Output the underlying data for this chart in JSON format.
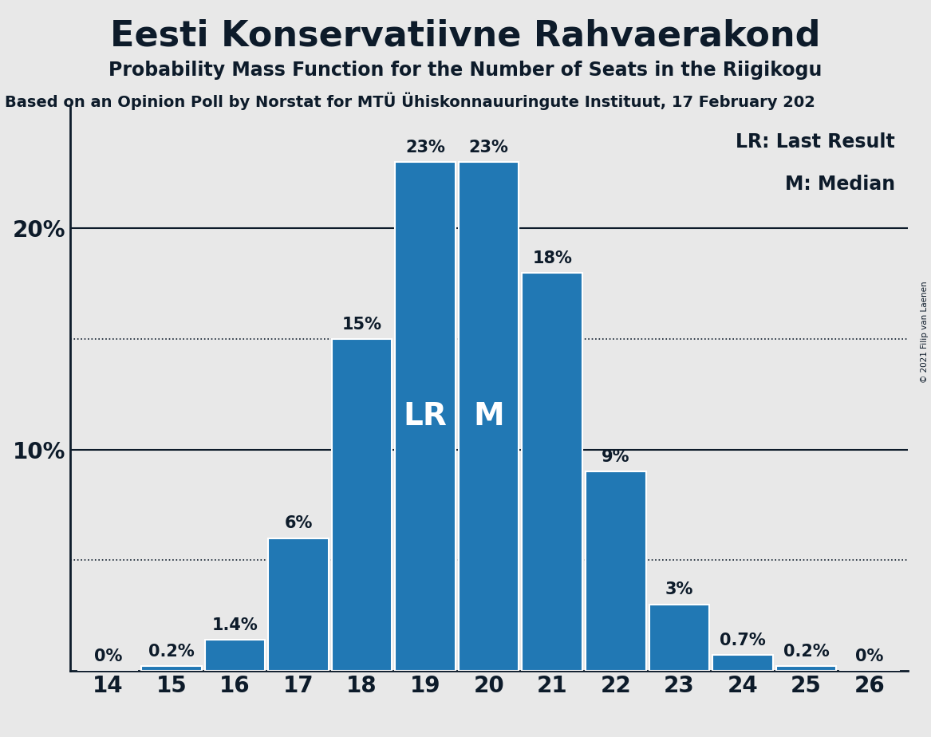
{
  "title": "Eesti Konservatiivne Rahvaerakond",
  "subtitle": "Probability Mass Function for the Number of Seats in the Riigikogu",
  "source": "Based on an Opinion Poll by Norstat for MTÜ Ühiskonnauuringute Instituut, 17 February 202",
  "copyright": "© 2021 Filip van Laenen",
  "seats": [
    14,
    15,
    16,
    17,
    18,
    19,
    20,
    21,
    22,
    23,
    24,
    25,
    26
  ],
  "probabilities": [
    0.0,
    0.2,
    1.4,
    6.0,
    15.0,
    23.0,
    23.0,
    18.0,
    9.0,
    3.0,
    0.7,
    0.2,
    0.0
  ],
  "labels": [
    "0%",
    "0.2%",
    "1.4%",
    "6%",
    "15%",
    "23%",
    "23%",
    "18%",
    "9%",
    "3%",
    "0.7%",
    "0.2%",
    "0%"
  ],
  "bar_color": "#2178b4",
  "background_color": "#e8e8e8",
  "last_result_seat": 19,
  "median_seat": 20,
  "solid_lines": [
    10.0,
    20.0
  ],
  "dotted_lines": [
    5.0,
    15.0
  ],
  "legend_lr": "LR: Last Result",
  "legend_m": "M: Median",
  "title_fontsize": 32,
  "subtitle_fontsize": 17,
  "source_fontsize": 14,
  "bar_label_fontsize": 15,
  "axis_tick_fontsize": 20,
  "bar_inner_label_fontsize": 28,
  "legend_fontsize": 17,
  "ylim": [
    0,
    25.5
  ],
  "xlim_left": 13.4,
  "xlim_right": 26.6
}
